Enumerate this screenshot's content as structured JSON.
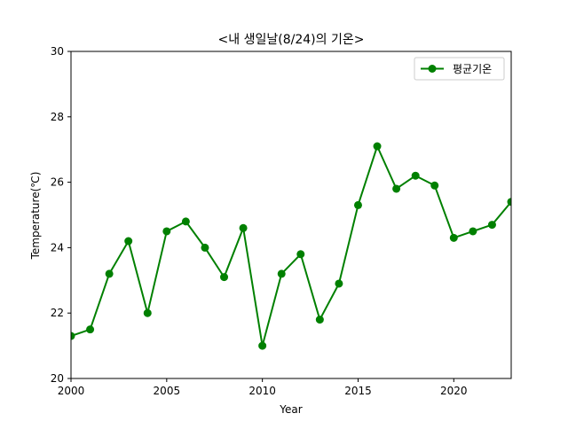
{
  "chart_data": {
    "type": "line",
    "title": "<내 생일날(8/24)의 기온>",
    "xlabel": "Year",
    "ylabel": "Temperature(℃)",
    "xlim": [
      2000,
      2023
    ],
    "ylim": [
      20,
      30
    ],
    "x_ticks": [
      2000,
      2005,
      2010,
      2015,
      2020
    ],
    "y_ticks": [
      20,
      22,
      24,
      26,
      28,
      30
    ],
    "grid": false,
    "legend_position": "upper right",
    "series": [
      {
        "name": "평균기온",
        "color": "#008000",
        "marker": "circle",
        "x": [
          2000,
          2001,
          2002,
          2003,
          2004,
          2005,
          2006,
          2007,
          2008,
          2009,
          2010,
          2011,
          2012,
          2013,
          2014,
          2015,
          2016,
          2017,
          2018,
          2019,
          2020,
          2021,
          2022,
          2023
        ],
        "y": [
          21.3,
          21.5,
          23.2,
          24.2,
          22.0,
          24.5,
          24.8,
          24.0,
          23.1,
          24.6,
          21.0,
          23.2,
          23.8,
          21.8,
          22.9,
          25.3,
          27.1,
          25.8,
          26.2,
          25.9,
          24.3,
          24.5,
          24.7,
          25.4
        ]
      }
    ]
  }
}
